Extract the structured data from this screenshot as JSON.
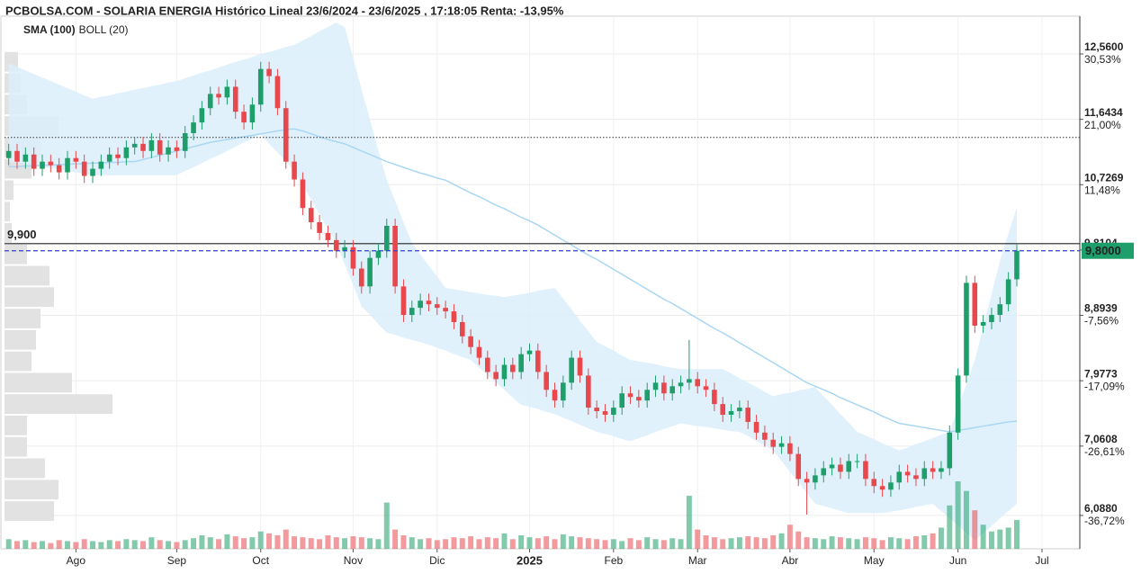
{
  "chart_data": {
    "type": "candlestick",
    "title": "PCBOLSA.COM - SOLARIA ENERGIA Histórico Lineal 23/6/2024 - 23/6/2025 , 17:18:05 Renta: -13,95%",
    "grid": true,
    "up_color": "#1e9e6a",
    "down_color": "#e8474c",
    "ylim": [
      5.62,
      13.09
    ],
    "yticks": [
      {
        "value": 12.56,
        "label": "12,5600"
      },
      {
        "value": 11.6434,
        "label": "11,6434"
      },
      {
        "value": 10.7269,
        "label": "10,7269"
      },
      {
        "value": 9.8104,
        "label": "9,8104"
      },
      {
        "value": 8.8939,
        "label": "8,8939"
      },
      {
        "value": 7.9773,
        "label": "7,9773"
      },
      {
        "value": 7.0608,
        "label": "7,0608"
      },
      {
        "value": 6.088,
        "label": "6,0880"
      }
    ],
    "ychange": [
      {
        "value": 30.53,
        "label": "30,53%"
      },
      {
        "value": 21.0,
        "label": "21,00%"
      },
      {
        "value": 11.48,
        "label": "11,48%"
      },
      null,
      {
        "value": -7.56,
        "label": "-7,56%"
      },
      {
        "value": -17.09,
        "label": "-17,09%"
      },
      {
        "value": -26.61,
        "label": "-26,61%"
      },
      {
        "value": -36.72,
        "label": "-36,72%"
      }
    ],
    "ref_line": {
      "value": 9.9,
      "label": "9,900",
      "color": "#222222"
    },
    "dotted_line": {
      "value": 11.39,
      "color": "#333333"
    },
    "last_price": {
      "value": 9.8,
      "label": "9,8000",
      "color": "#1e9e6a",
      "line_color": "#3340dd"
    },
    "categories": [
      null,
      null,
      null,
      null,
      null,
      null,
      null,
      null,
      "Ago",
      null,
      null,
      null,
      null,
      null,
      null,
      null,
      null,
      null,
      null,
      null,
      "Sep",
      null,
      null,
      null,
      null,
      null,
      null,
      null,
      null,
      null,
      "Oct",
      null,
      null,
      null,
      null,
      null,
      null,
      null,
      null,
      null,
      null,
      "Nov",
      null,
      null,
      null,
      null,
      null,
      null,
      null,
      null,
      null,
      "Dic",
      null,
      null,
      null,
      null,
      null,
      null,
      null,
      null,
      null,
      null,
      "2025",
      null,
      null,
      null,
      null,
      null,
      null,
      null,
      null,
      null,
      "Feb",
      null,
      null,
      null,
      null,
      null,
      null,
      null,
      null,
      null,
      "Mar",
      null,
      null,
      null,
      null,
      null,
      null,
      null,
      null,
      null,
      null,
      "Abr",
      null,
      null,
      null,
      null,
      null,
      null,
      null,
      null,
      null,
      "May",
      null,
      null,
      null,
      null,
      null,
      null,
      null,
      null,
      null,
      "Jun",
      null,
      null,
      null,
      null,
      null,
      null,
      null,
      null,
      null,
      "Jul",
      null,
      null,
      null,
      null
    ],
    "open": [
      11.1,
      11.2,
      11.05,
      11.15,
      10.95,
      11.05,
      11.0,
      10.9,
      11.1,
      11.05,
      10.85,
      10.95,
      11.05,
      11.15,
      11.1,
      11.25,
      11.3,
      11.2,
      11.35,
      11.15,
      11.25,
      11.2,
      11.45,
      11.6,
      11.8,
      12.0,
      11.95,
      12.1,
      11.75,
      11.6,
      11.85,
      12.35,
      12.25,
      11.8,
      11.05,
      10.8,
      10.4,
      10.2,
      10.05,
      9.95,
      9.8,
      9.85,
      9.55,
      9.3,
      9.7,
      9.8,
      10.15,
      9.3,
      8.9,
      9.0,
      9.1,
      9.05,
      9.0,
      8.95,
      8.8,
      8.6,
      8.45,
      8.3,
      8.1,
      8.0,
      8.2,
      8.1,
      8.35,
      8.4,
      8.1,
      7.85,
      7.7,
      7.95,
      8.3,
      8.05,
      7.6,
      7.55,
      7.5,
      7.6,
      7.8,
      7.75,
      7.7,
      7.85,
      7.95,
      7.8,
      7.9,
      7.95,
      8.0,
      7.9,
      7.85,
      7.65,
      7.5,
      7.55,
      7.6,
      7.4,
      7.25,
      7.15,
      7.05,
      7.1,
      6.95,
      6.6,
      6.55,
      6.65,
      6.75,
      6.8,
      6.7,
      6.85,
      6.85,
      6.6,
      6.5,
      6.45,
      6.55,
      6.7,
      6.65,
      6.6,
      6.75,
      6.7,
      6.75,
      7.25,
      8.05,
      9.35,
      8.75,
      8.8,
      8.9,
      9.05,
      9.4,
      null,
      null,
      null,
      null,
      null,
      null,
      null
    ],
    "high": [
      11.3,
      11.3,
      11.25,
      11.25,
      11.15,
      11.15,
      11.1,
      11.2,
      11.2,
      11.15,
      11.05,
      11.15,
      11.25,
      11.25,
      11.35,
      11.4,
      11.4,
      11.45,
      11.45,
      11.35,
      11.35,
      11.55,
      11.7,
      11.9,
      12.1,
      12.1,
      12.2,
      12.2,
      11.85,
      11.95,
      12.45,
      12.45,
      12.35,
      11.9,
      11.15,
      10.9,
      10.5,
      10.3,
      10.15,
      10.05,
      9.95,
      9.95,
      9.65,
      9.8,
      9.9,
      10.25,
      10.25,
      9.4,
      9.1,
      9.2,
      9.2,
      9.15,
      9.1,
      9.05,
      8.9,
      8.7,
      8.55,
      8.4,
      8.2,
      8.3,
      8.3,
      8.45,
      8.5,
      8.5,
      8.2,
      7.95,
      8.05,
      8.4,
      8.4,
      8.15,
      7.7,
      7.65,
      7.7,
      7.9,
      7.9,
      7.85,
      7.95,
      8.05,
      8.05,
      8.0,
      8.05,
      8.55,
      8.1,
      8.0,
      7.95,
      7.75,
      7.65,
      7.7,
      7.7,
      7.5,
      7.35,
      7.25,
      7.2,
      7.2,
      7.05,
      6.7,
      6.75,
      6.85,
      6.9,
      6.9,
      6.95,
      6.95,
      6.95,
      6.7,
      6.6,
      6.65,
      6.8,
      6.8,
      6.75,
      6.85,
      6.85,
      6.85,
      7.35,
      8.15,
      9.45,
      9.45,
      8.9,
      9.0,
      9.15,
      9.5,
      9.9,
      null,
      null,
      null,
      null,
      null,
      null,
      null
    ],
    "low": [
      11.0,
      10.95,
      10.95,
      10.85,
      10.85,
      10.9,
      10.8,
      10.8,
      10.95,
      10.75,
      10.75,
      10.85,
      10.95,
      11.0,
      11.0,
      11.15,
      11.1,
      11.1,
      11.05,
      11.05,
      11.1,
      11.1,
      11.35,
      11.5,
      11.7,
      11.85,
      11.85,
      11.65,
      11.5,
      11.5,
      11.75,
      12.15,
      11.7,
      10.95,
      10.7,
      10.3,
      10.1,
      9.95,
      9.85,
      9.7,
      9.7,
      9.45,
      9.2,
      9.2,
      9.6,
      9.7,
      9.2,
      8.8,
      8.8,
      8.9,
      8.95,
      8.9,
      8.85,
      8.7,
      8.5,
      8.35,
      8.2,
      8.0,
      7.9,
      7.9,
      8.0,
      8.0,
      8.25,
      8.0,
      7.75,
      7.6,
      7.6,
      7.85,
      7.95,
      7.5,
      7.45,
      7.4,
      7.4,
      7.5,
      7.65,
      7.6,
      7.6,
      7.75,
      7.7,
      7.7,
      7.8,
      7.85,
      7.8,
      7.75,
      7.55,
      7.4,
      7.4,
      7.45,
      7.3,
      7.15,
      7.05,
      6.95,
      6.95,
      6.85,
      6.5,
      6.1,
      6.45,
      6.55,
      6.65,
      6.6,
      6.6,
      6.75,
      6.5,
      6.4,
      6.35,
      6.35,
      6.45,
      6.55,
      6.5,
      6.5,
      6.6,
      6.6,
      6.65,
      7.15,
      7.95,
      8.65,
      8.65,
      8.7,
      8.8,
      8.95,
      9.3,
      null,
      null,
      null,
      null,
      null,
      null,
      null
    ],
    "close": [
      11.2,
      11.05,
      11.15,
      10.95,
      11.05,
      11.0,
      10.9,
      11.1,
      11.05,
      10.85,
      10.95,
      11.05,
      11.15,
      11.1,
      11.25,
      11.3,
      11.2,
      11.35,
      11.15,
      11.25,
      11.2,
      11.45,
      11.6,
      11.8,
      12.0,
      11.95,
      12.1,
      11.75,
      11.6,
      11.85,
      12.35,
      12.25,
      11.8,
      11.05,
      10.8,
      10.4,
      10.2,
      10.05,
      9.95,
      9.8,
      9.85,
      9.55,
      9.3,
      9.7,
      9.8,
      10.15,
      9.3,
      8.9,
      9.0,
      9.1,
      9.05,
      9.0,
      8.95,
      8.8,
      8.6,
      8.45,
      8.3,
      8.1,
      8.0,
      8.2,
      8.1,
      8.35,
      8.4,
      8.1,
      7.85,
      7.7,
      7.95,
      8.3,
      8.05,
      7.6,
      7.55,
      7.5,
      7.6,
      7.8,
      7.75,
      7.7,
      7.85,
      7.95,
      7.8,
      7.9,
      7.95,
      8.0,
      7.9,
      7.85,
      7.65,
      7.5,
      7.55,
      7.6,
      7.4,
      7.25,
      7.15,
      7.05,
      7.1,
      6.95,
      6.6,
      6.55,
      6.65,
      6.75,
      6.8,
      6.7,
      6.85,
      6.85,
      6.6,
      6.5,
      6.45,
      6.55,
      6.7,
      6.65,
      6.6,
      6.75,
      6.7,
      6.75,
      7.25,
      8.05,
      9.35,
      8.75,
      8.8,
      8.9,
      9.05,
      9.4,
      9.8,
      null,
      null,
      null,
      null,
      null,
      null,
      null
    ],
    "volume": [
      10,
      8,
      9,
      7,
      8,
      6,
      9,
      8,
      7,
      10,
      8,
      7,
      9,
      8,
      10,
      9,
      8,
      12,
      9,
      8,
      7,
      9,
      11,
      14,
      12,
      10,
      15,
      13,
      11,
      12,
      18,
      16,
      14,
      20,
      13,
      12,
      11,
      10,
      14,
      12,
      11,
      13,
      12,
      11,
      10,
      48,
      20,
      14,
      12,
      10,
      11,
      9,
      10,
      12,
      11,
      13,
      10,
      12,
      11,
      16,
      10,
      14,
      12,
      11,
      13,
      10,
      15,
      13,
      12,
      11,
      10,
      9,
      10,
      8,
      11,
      9,
      12,
      10,
      9,
      11,
      10,
      55,
      20,
      14,
      12,
      10,
      11,
      12,
      13,
      12,
      11,
      14,
      16,
      25,
      18,
      12,
      11,
      10,
      13,
      12,
      11,
      10,
      12,
      11,
      9,
      12,
      11,
      10,
      13,
      14,
      16,
      22,
      45,
      70,
      60,
      40,
      25,
      18,
      20,
      22,
      30,
      null,
      null,
      null,
      null,
      null,
      null,
      null
    ],
    "sma": {
      "name": "SMA (100)",
      "color": "#a9d7f3",
      "values": [
        10.98,
        10.98,
        10.99,
        10.99,
        11.0,
        11.0,
        11.01,
        11.01,
        11.02,
        11.02,
        11.03,
        11.03,
        11.04,
        11.04,
        11.05,
        11.05,
        11.08,
        11.11,
        11.14,
        11.17,
        11.2,
        11.23,
        11.26,
        11.29,
        11.32,
        11.34,
        11.36,
        11.38,
        11.4,
        11.42,
        11.44,
        11.46,
        11.48,
        11.5,
        11.51,
        11.48,
        11.44,
        11.4,
        11.36,
        11.33,
        11.3,
        11.25,
        11.2,
        11.15,
        11.1,
        11.05,
        11.01,
        10.97,
        10.93,
        10.89,
        10.86,
        10.82,
        10.79,
        10.73,
        10.67,
        10.61,
        10.56,
        10.5,
        10.44,
        10.39,
        10.33,
        10.27,
        10.22,
        10.16,
        10.09,
        10.02,
        9.95,
        9.88,
        9.81,
        9.74,
        9.68,
        9.61,
        9.54,
        9.47,
        9.4,
        9.33,
        9.26,
        9.19,
        9.12,
        9.06,
        8.99,
        8.92,
        8.85,
        8.78,
        8.71,
        8.65,
        8.58,
        8.51,
        8.44,
        8.37,
        8.3,
        8.23,
        8.16,
        8.09,
        8.02,
        7.95,
        7.9,
        7.85,
        7.8,
        7.74,
        7.69,
        7.64,
        7.59,
        7.54,
        7.48,
        7.43,
        7.38,
        7.36,
        7.34,
        7.32,
        7.3,
        7.28,
        7.26,
        7.28,
        7.3,
        7.32,
        7.34,
        7.36,
        7.38,
        7.4,
        7.41,
        null,
        null,
        null,
        null,
        null,
        null,
        null
      ]
    },
    "bollinger": {
      "name": "BOLL (20)",
      "color": "#dbeefc",
      "label_color": "#c4c4c4",
      "upper": [
        12.43,
        12.38,
        12.33,
        12.28,
        12.23,
        12.18,
        12.13,
        12.08,
        12.03,
        11.98,
        11.93,
        11.96,
        11.98,
        12.01,
        12.03,
        12.06,
        12.08,
        12.11,
        12.13,
        12.16,
        12.18,
        12.22,
        12.26,
        12.3,
        12.33,
        12.37,
        12.41,
        12.45,
        12.48,
        12.52,
        12.56,
        12.59,
        12.62,
        12.66,
        12.69,
        12.75,
        12.81,
        12.88,
        12.94,
        13.0,
        12.94,
        12.5,
        12.07,
        11.64,
        11.21,
        10.79,
        10.5,
        10.2,
        9.91,
        9.75,
        9.59,
        9.44,
        9.28,
        9.26,
        9.24,
        9.22,
        9.2,
        9.18,
        9.17,
        9.15,
        9.17,
        9.19,
        9.21,
        9.24,
        9.26,
        9.28,
        9.13,
        8.98,
        8.82,
        8.67,
        8.52,
        8.46,
        8.4,
        8.33,
        8.27,
        8.25,
        8.23,
        8.21,
        8.18,
        8.16,
        8.14,
        8.14,
        8.14,
        8.14,
        8.14,
        8.14,
        8.08,
        8.01,
        7.95,
        7.89,
        7.82,
        7.76,
        7.79,
        7.81,
        7.84,
        7.86,
        7.89,
        7.76,
        7.64,
        7.51,
        7.39,
        7.26,
        7.21,
        7.16,
        7.1,
        7.05,
        7.0,
        7.04,
        7.09,
        7.13,
        7.17,
        7.22,
        7.26,
        7.6,
        7.93,
        8.27,
        8.73,
        9.2,
        9.66,
        10.04,
        10.41,
        null,
        null,
        null,
        null,
        null,
        null,
        null
      ],
      "lower": [
        11.05,
        11.03,
        11.01,
        10.99,
        10.97,
        10.96,
        10.94,
        10.92,
        10.9,
        10.88,
        10.86,
        10.86,
        10.86,
        10.86,
        10.86,
        10.86,
        10.86,
        10.86,
        10.86,
        10.86,
        10.86,
        10.92,
        10.97,
        11.03,
        11.09,
        11.14,
        11.2,
        11.26,
        11.32,
        11.37,
        11.43,
        11.3,
        11.18,
        11.05,
        10.92,
        10.72,
        10.52,
        10.31,
        10.11,
        9.91,
        9.61,
        9.32,
        9.02,
        8.9,
        8.77,
        8.65,
        8.62,
        8.58,
        8.55,
        8.52,
        8.48,
        8.44,
        8.4,
        8.35,
        8.31,
        8.27,
        8.16,
        8.06,
        7.95,
        7.85,
        7.74,
        7.64,
        7.61,
        7.58,
        7.54,
        7.51,
        7.46,
        7.41,
        7.36,
        7.31,
        7.26,
        7.23,
        7.2,
        7.16,
        7.13,
        7.17,
        7.21,
        7.26,
        7.3,
        7.34,
        7.38,
        7.36,
        7.34,
        7.33,
        7.31,
        7.29,
        7.27,
        7.26,
        7.2,
        7.13,
        7.07,
        7.0,
        6.85,
        6.7,
        6.55,
        6.4,
        6.25,
        6.22,
        6.19,
        6.15,
        6.12,
        6.12,
        6.12,
        6.12,
        6.12,
        6.14,
        6.16,
        6.18,
        6.21,
        6.23,
        6.25,
        6.15,
        6.05,
        5.95,
        5.84,
        5.74,
        5.84,
        5.94,
        6.05,
        6.15,
        6.25,
        null,
        null,
        null,
        null,
        null,
        null,
        null
      ]
    },
    "volume_profile": {
      "color": "#e2e2e2",
      "bins": [
        6.0,
        6.3,
        6.6,
        6.9,
        7.2,
        7.5,
        7.8,
        8.1,
        8.4,
        8.7,
        9.0,
        9.3,
        9.6,
        9.9,
        10.2,
        10.5,
        10.8,
        11.1,
        11.4,
        11.7,
        12.0,
        12.3,
        12.6
      ],
      "values": [
        55,
        60,
        45,
        25,
        25,
        120,
        75,
        30,
        35,
        40,
        55,
        50,
        25,
        8,
        6,
        10,
        30,
        40,
        60,
        25,
        18,
        15
      ]
    }
  }
}
